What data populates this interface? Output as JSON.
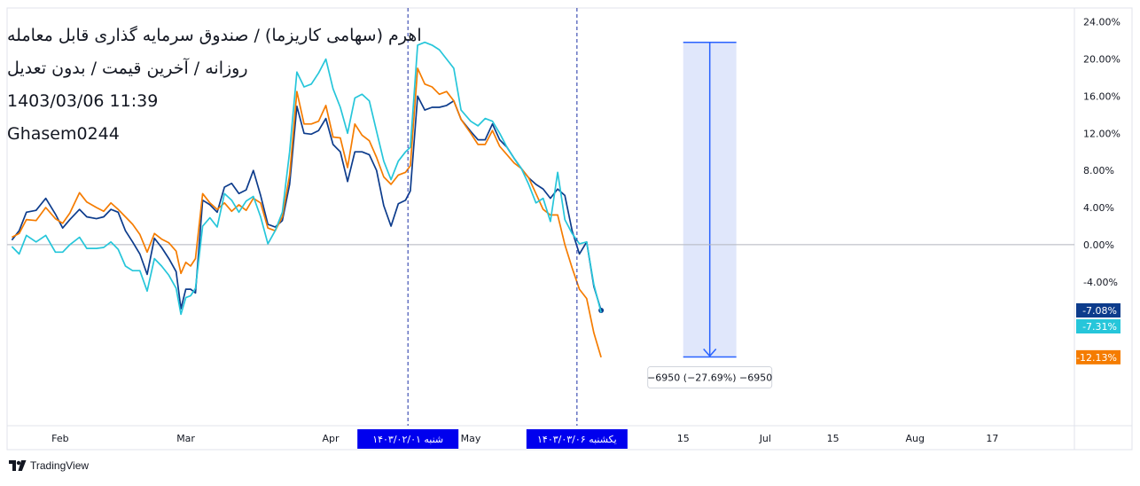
{
  "legend": {
    "title": "اهرم (سهامی کاریزما) / صندوق سرمایه گذاری قابل معامله",
    "subtitle": "روزانه / آخرین قیمت / بدون تعدیل",
    "datetime": "1403/03/06 11:39",
    "author": "Ghasem0244"
  },
  "watermark": {
    "brand": "TradingView",
    "icon": "tradingview-logo-icon"
  },
  "colors": {
    "dark_blue": "#0d3c8c",
    "orange": "#f57c00",
    "cyan": "#26c6da",
    "range_fill": "#dde4fb",
    "range_line": "#2962ff",
    "marker_bg": "#0000ee",
    "zero_line": "#b2b5be",
    "crosshair": "#1c2fa6"
  },
  "chart_data": {
    "type": "line",
    "y_unit": "%",
    "ylim": [
      -19.5,
      25.5
    ],
    "y_ticks": [
      "24.00%",
      "20.00%",
      "16.00%",
      "12.00%",
      "8.00%",
      "4.00%",
      "0.00%",
      "-4.00%"
    ],
    "y_tick_values": [
      24,
      20,
      16,
      12,
      8,
      4,
      0,
      -4
    ],
    "x_ticks": [
      {
        "label": "Feb",
        "t": 10
      },
      {
        "label": "Mar",
        "t": 36
      },
      {
        "label": "Apr",
        "t": 66
      },
      {
        "label": "May",
        "t": 95
      },
      {
        "label": "15",
        "t": 139
      },
      {
        "label": "Jul",
        "t": 156
      },
      {
        "label": "15",
        "t": 170
      },
      {
        "label": "Aug",
        "t": 187
      },
      {
        "label": "17",
        "t": 203
      }
    ],
    "x_range": [
      -1,
      220
    ],
    "x_markers": [
      {
        "label": "شنبه ۱۴۰۳/۰۲/۰۱",
        "t": 82
      },
      {
        "label": "یکشنبه ۱۴۰۳/۰۳/۰۶",
        "t": 117
      }
    ],
    "series": [
      {
        "color": "#0d3c8c",
        "last_label": "-7.08%",
        "last_marker": true,
        "points": [
          [
            0,
            0.5
          ],
          [
            1.5,
            1.5
          ],
          [
            3,
            3.5
          ],
          [
            5,
            3.7
          ],
          [
            7,
            5
          ],
          [
            9,
            3.3
          ],
          [
            10.5,
            1.8
          ],
          [
            12,
            2.7
          ],
          [
            14,
            3.8
          ],
          [
            15.5,
            3
          ],
          [
            17.5,
            2.8
          ],
          [
            19,
            3
          ],
          [
            20.5,
            3.8
          ],
          [
            22,
            3.5
          ],
          [
            23.5,
            1.5
          ],
          [
            25,
            0.3
          ],
          [
            26.5,
            -1
          ],
          [
            28,
            -3.2
          ],
          [
            29.5,
            0.7
          ],
          [
            31,
            -0.3
          ],
          [
            32.5,
            -1.5
          ],
          [
            34,
            -2.9
          ],
          [
            35,
            -6.9
          ],
          [
            36,
            -4.8
          ],
          [
            37,
            -4.8
          ],
          [
            38,
            -5.2
          ],
          [
            39.5,
            4.8
          ],
          [
            41,
            4.3
          ],
          [
            42.5,
            3.5
          ],
          [
            44,
            6.2
          ],
          [
            45.5,
            6.6
          ],
          [
            47,
            5.5
          ],
          [
            48.5,
            5.9
          ],
          [
            50,
            8
          ],
          [
            51.5,
            5.3
          ],
          [
            53,
            2.2
          ],
          [
            54.5,
            1.9
          ],
          [
            56,
            2.6
          ],
          [
            57.5,
            6.5
          ],
          [
            59,
            14.9
          ],
          [
            60.5,
            12
          ],
          [
            62,
            11.9
          ],
          [
            63.5,
            12.3
          ],
          [
            65,
            13.6
          ],
          [
            66.5,
            10.8
          ],
          [
            68,
            10
          ],
          [
            69.5,
            6.8
          ],
          [
            71,
            10
          ],
          [
            72.5,
            10
          ],
          [
            74,
            9.7
          ],
          [
            75.5,
            8
          ],
          [
            77,
            4.2
          ],
          [
            78.5,
            2
          ],
          [
            80,
            4.4
          ],
          [
            81.5,
            4.8
          ],
          [
            82.5,
            5.8
          ],
          [
            84,
            16
          ],
          [
            85.5,
            14.5
          ],
          [
            87,
            14.8
          ],
          [
            88.5,
            14.8
          ],
          [
            90,
            15
          ],
          [
            91.5,
            15.5
          ],
          [
            93,
            13.5
          ],
          [
            95,
            12.2
          ],
          [
            96.5,
            11.3
          ],
          [
            98,
            11.3
          ],
          [
            99.5,
            13
          ],
          [
            101,
            11.3
          ],
          [
            102.5,
            10.5
          ],
          [
            104,
            9.3
          ],
          [
            105.5,
            8.2
          ],
          [
            107,
            7.2
          ],
          [
            108.5,
            6.5
          ],
          [
            110,
            6
          ],
          [
            111.5,
            5
          ],
          [
            113,
            6
          ],
          [
            114.5,
            5.3
          ],
          [
            116,
            1.5
          ],
          [
            117.5,
            -1
          ],
          [
            119,
            0.3
          ],
          [
            120.5,
            -4.5
          ],
          [
            122,
            -7.08
          ]
        ]
      },
      {
        "color": "#f57c00",
        "last_label": "-12.13%",
        "last_marker": false,
        "points": [
          [
            0,
            0.8
          ],
          [
            1.5,
            1.2
          ],
          [
            3,
            2.7
          ],
          [
            5,
            2.6
          ],
          [
            7,
            4
          ],
          [
            9,
            2.8
          ],
          [
            10.5,
            2.3
          ],
          [
            12,
            3.4
          ],
          [
            14,
            5.6
          ],
          [
            15.5,
            4.6
          ],
          [
            17.5,
            4
          ],
          [
            19,
            3.6
          ],
          [
            20.5,
            4.5
          ],
          [
            22,
            3.8
          ],
          [
            23.5,
            3
          ],
          [
            25,
            2.2
          ],
          [
            26.5,
            1.1
          ],
          [
            28,
            -0.8
          ],
          [
            29.5,
            1.2
          ],
          [
            31,
            0.6
          ],
          [
            32.5,
            0.2
          ],
          [
            34,
            -0.7
          ],
          [
            35,
            -3.1
          ],
          [
            36,
            -1.9
          ],
          [
            37,
            -2.3
          ],
          [
            38,
            -1.5
          ],
          [
            39.5,
            5.5
          ],
          [
            41,
            4.5
          ],
          [
            42.5,
            3.8
          ],
          [
            44,
            4.5
          ],
          [
            45.5,
            3.6
          ],
          [
            47,
            4.3
          ],
          [
            48.5,
            3.7
          ],
          [
            50,
            5
          ],
          [
            51.5,
            4.5
          ],
          [
            53,
            1.8
          ],
          [
            54.5,
            1.5
          ],
          [
            56,
            3
          ],
          [
            57.5,
            7.5
          ],
          [
            59,
            16.5
          ],
          [
            60.5,
            13
          ],
          [
            62,
            13
          ],
          [
            63.5,
            13.3
          ],
          [
            65,
            15
          ],
          [
            66.5,
            11.6
          ],
          [
            68,
            11.5
          ],
          [
            69.5,
            8.3
          ],
          [
            71,
            13
          ],
          [
            72.5,
            11.8
          ],
          [
            74,
            11.2
          ],
          [
            75.5,
            9.4
          ],
          [
            77,
            7.3
          ],
          [
            78.5,
            6.5
          ],
          [
            80,
            7.5
          ],
          [
            81.5,
            7.8
          ],
          [
            82.5,
            8.5
          ],
          [
            84,
            19
          ],
          [
            85.5,
            17.3
          ],
          [
            87,
            17
          ],
          [
            88.5,
            16.2
          ],
          [
            90,
            16.5
          ],
          [
            91.5,
            15.5
          ],
          [
            93,
            13.5
          ],
          [
            95,
            12
          ],
          [
            96.5,
            10.8
          ],
          [
            98,
            10.8
          ],
          [
            99.5,
            12.3
          ],
          [
            101,
            10.6
          ],
          [
            102.5,
            9.7
          ],
          [
            104,
            8.8
          ],
          [
            105.5,
            8.2
          ],
          [
            107,
            7.2
          ],
          [
            108.5,
            5.5
          ],
          [
            110,
            3.8
          ],
          [
            111.5,
            3.2
          ],
          [
            113,
            3.2
          ],
          [
            114.5,
            0
          ],
          [
            116,
            -2.5
          ],
          [
            117.5,
            -4.8
          ],
          [
            119,
            -5.8
          ],
          [
            120.5,
            -9.5
          ],
          [
            122,
            -12.13
          ]
        ]
      },
      {
        "color": "#26c6da",
        "last_label": "-7.31%",
        "last_marker": false,
        "points": [
          [
            0,
            -0.2
          ],
          [
            1.5,
            -1
          ],
          [
            3,
            1
          ],
          [
            5,
            0.3
          ],
          [
            7,
            1
          ],
          [
            9,
            -0.8
          ],
          [
            10.5,
            -0.8
          ],
          [
            12,
            0
          ],
          [
            14,
            0.8
          ],
          [
            15.5,
            -0.4
          ],
          [
            17.5,
            -0.4
          ],
          [
            19,
            -0.3
          ],
          [
            20.5,
            0.3
          ],
          [
            22,
            -0.5
          ],
          [
            23.5,
            -2.3
          ],
          [
            25,
            -2.8
          ],
          [
            26.5,
            -2.8
          ],
          [
            28,
            -5
          ],
          [
            29.5,
            -1.5
          ],
          [
            31,
            -2.3
          ],
          [
            32.5,
            -3.3
          ],
          [
            34,
            -4.7
          ],
          [
            35,
            -7.5
          ],
          [
            36,
            -5.7
          ],
          [
            37,
            -5.5
          ],
          [
            38,
            -4.7
          ],
          [
            39.5,
            2
          ],
          [
            41,
            2.9
          ],
          [
            42.5,
            1.9
          ],
          [
            44,
            5.5
          ],
          [
            45.5,
            4.8
          ],
          [
            47,
            3.5
          ],
          [
            48.5,
            4.7
          ],
          [
            50,
            5.2
          ],
          [
            51.5,
            3
          ],
          [
            53,
            0.1
          ],
          [
            54.5,
            1.5
          ],
          [
            56,
            3.5
          ],
          [
            57.5,
            10
          ],
          [
            59,
            18.6
          ],
          [
            60.5,
            17
          ],
          [
            62,
            17.3
          ],
          [
            63.5,
            18.5
          ],
          [
            65,
            20
          ],
          [
            66.5,
            16.8
          ],
          [
            68,
            14.8
          ],
          [
            69.5,
            12
          ],
          [
            71,
            15.8
          ],
          [
            72.5,
            16.2
          ],
          [
            74,
            15.5
          ],
          [
            75.5,
            12.2
          ],
          [
            77,
            9
          ],
          [
            78.5,
            7
          ],
          [
            80,
            9
          ],
          [
            81.5,
            10
          ],
          [
            82.5,
            10.5
          ],
          [
            84,
            21.5
          ],
          [
            85.5,
            21.8
          ],
          [
            87,
            21.5
          ],
          [
            88.5,
            21
          ],
          [
            90,
            20
          ],
          [
            91.5,
            19
          ],
          [
            93,
            14.5
          ],
          [
            95,
            13.3
          ],
          [
            96.5,
            12.8
          ],
          [
            98,
            13.6
          ],
          [
            99.5,
            13.3
          ],
          [
            101,
            12
          ],
          [
            102.5,
            10.5
          ],
          [
            104,
            9.3
          ],
          [
            105.5,
            8.2
          ],
          [
            107,
            6.5
          ],
          [
            108.5,
            4.5
          ],
          [
            110,
            5
          ],
          [
            111.5,
            2.5
          ],
          [
            113,
            7.8
          ],
          [
            114.5,
            2.7
          ],
          [
            116,
            1.2
          ],
          [
            117.5,
            0.1
          ],
          [
            119,
            0.3
          ],
          [
            120.5,
            -4.3
          ],
          [
            122,
            -7.31
          ]
        ]
      }
    ],
    "measure": {
      "t_start": 139,
      "t_end": 150,
      "y_top": 21.8,
      "y_bottom": -12.1,
      "label": "−6950 (−27.69%) −6950"
    }
  }
}
